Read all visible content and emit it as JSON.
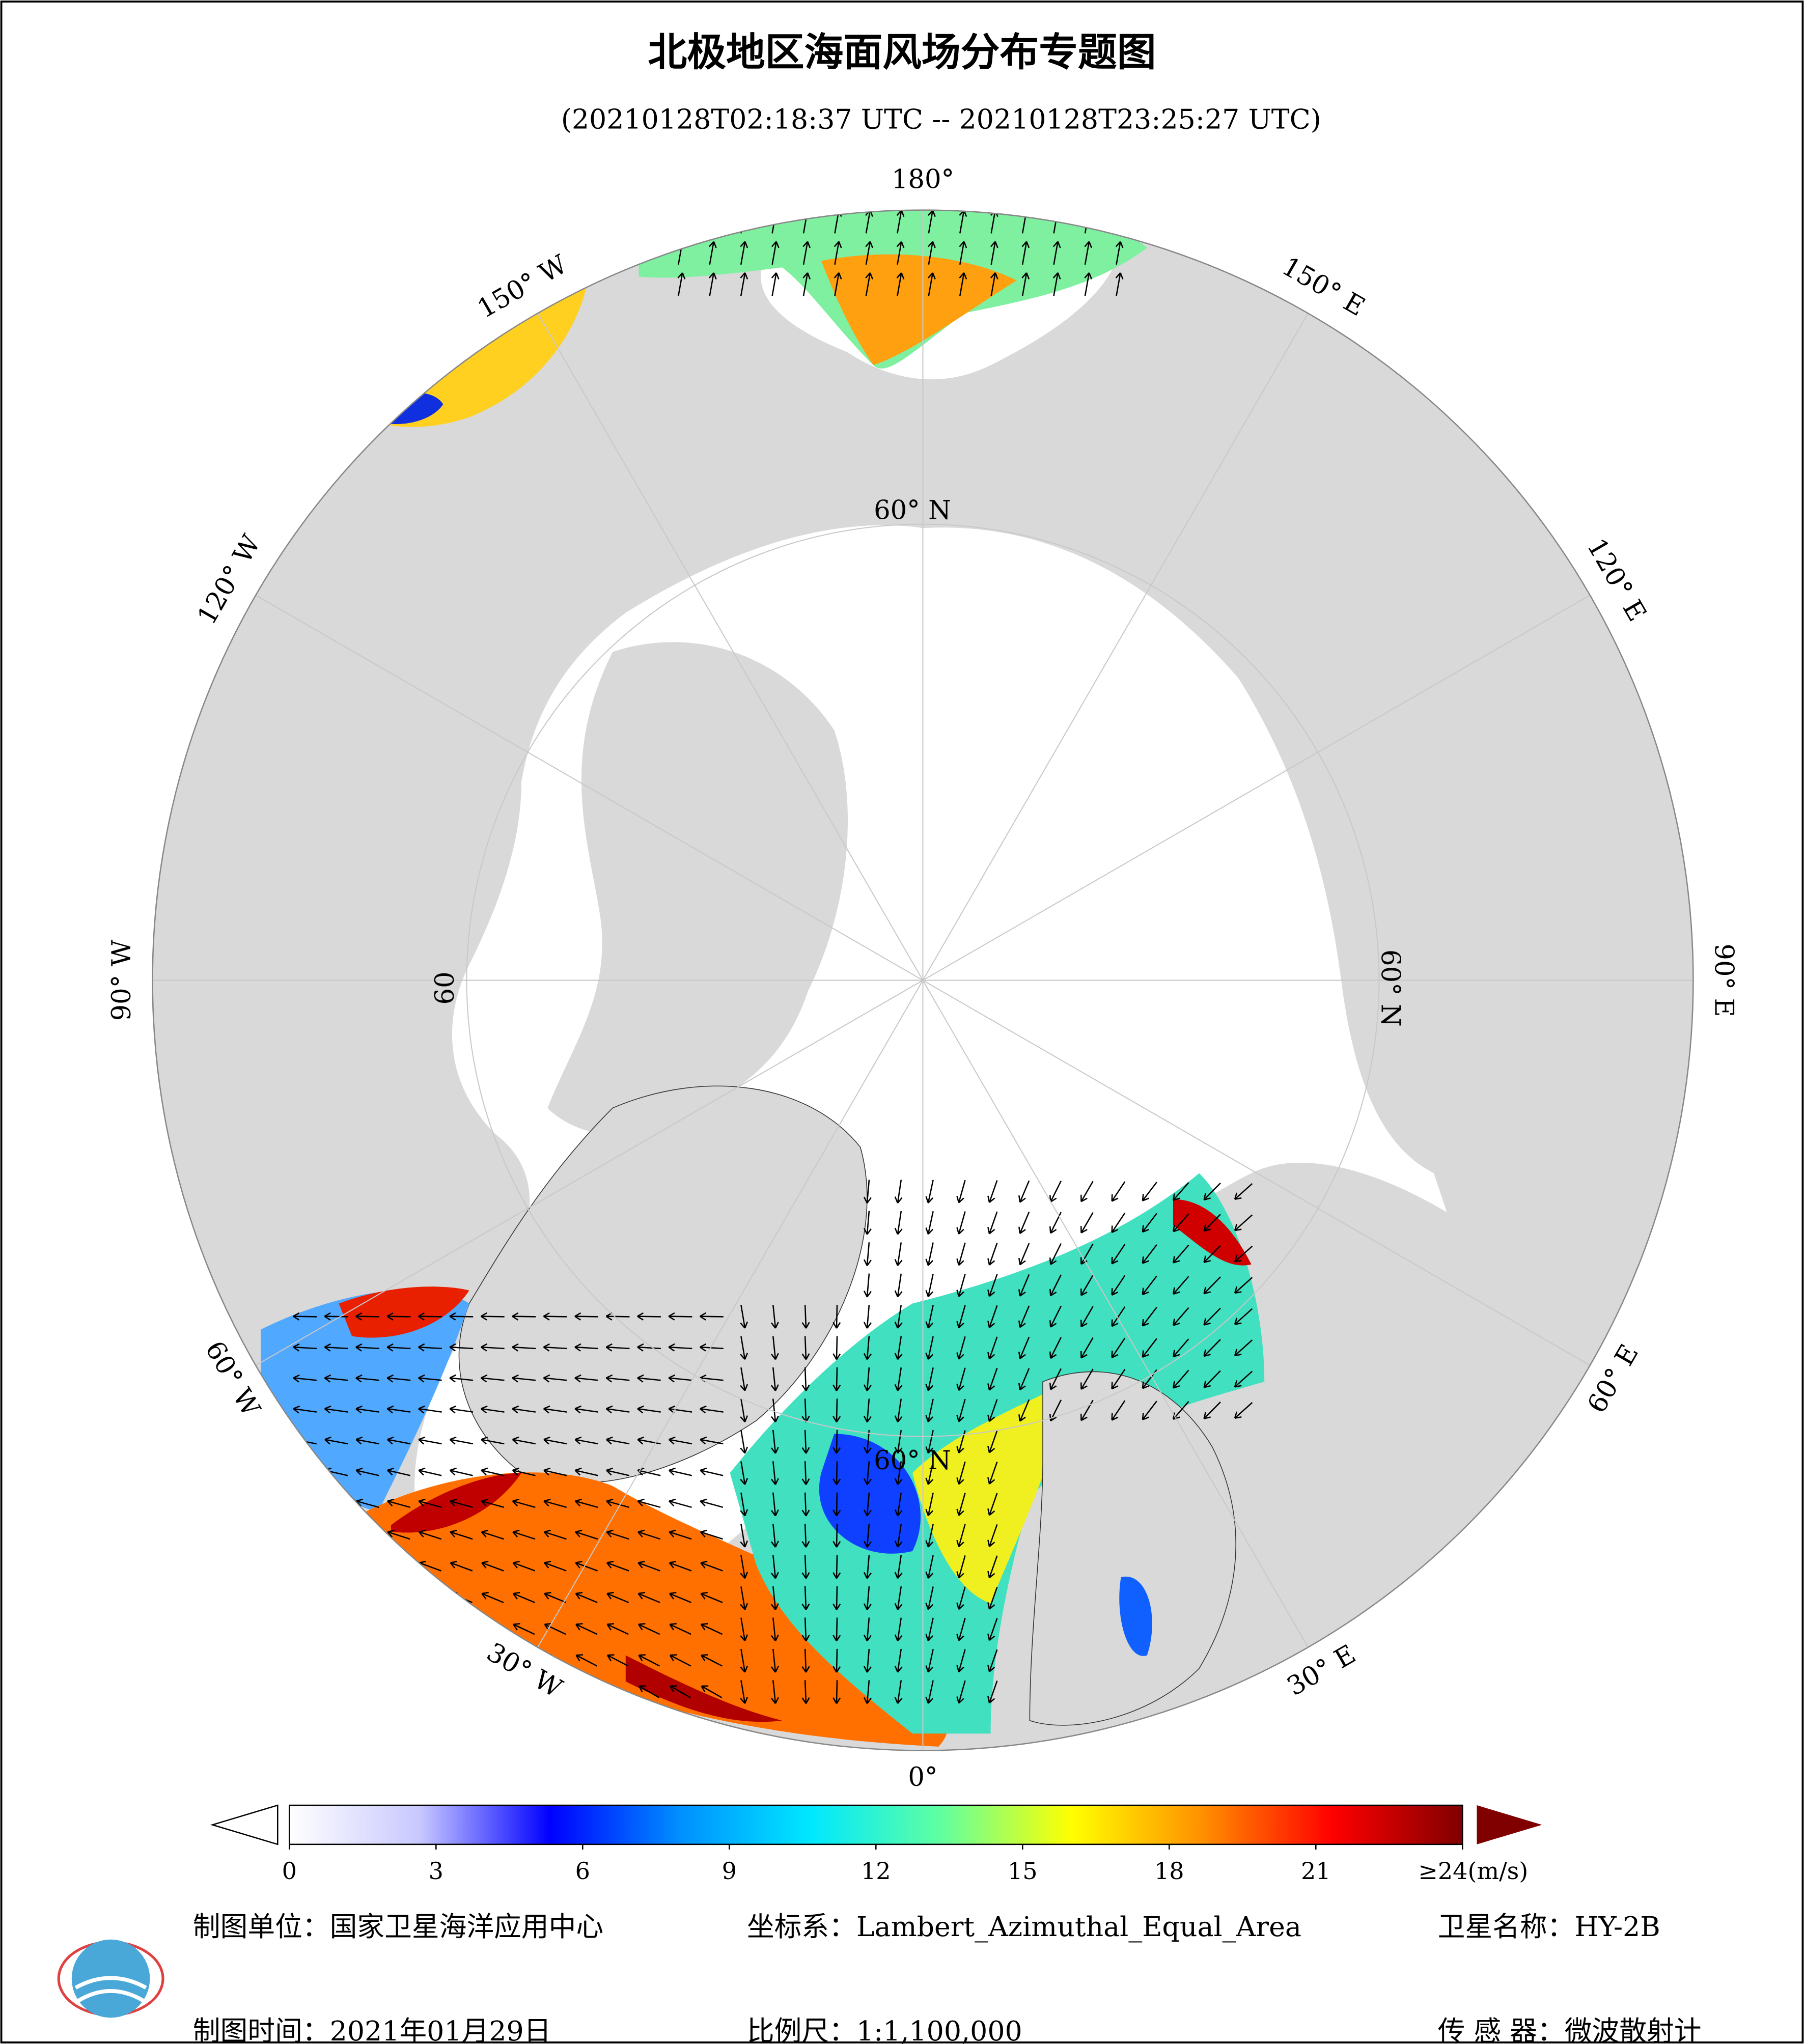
{
  "title": "北极地区海面风场分布专题图",
  "subtitle": "(20210128T02:18:37 UTC -- 20210128T23:25:27 UTC)",
  "longitude_labels": [
    "180°",
    "150° E",
    "120° E",
    "90° E",
    "60° E",
    "30° E",
    "0°",
    "30° W",
    "60° W",
    "90° W",
    "120° W",
    "150° W"
  ],
  "latitude_labels": [
    "60° N",
    "60° N",
    "60° N",
    "60"
  ],
  "colorbar": {
    "range": [
      0,
      24
    ],
    "ticks": [
      0,
      3,
      6,
      9,
      12,
      15,
      18,
      21,
      {
        "value": 24,
        "label": "≥24(m/s)"
      }
    ],
    "colors": [
      "#ffffff",
      "#c8c8ff",
      "#0000ff",
      "#0090ff",
      "#00e8ff",
      "#60ffa0",
      "#ffff00",
      "#ff9000",
      "#ff0000",
      "#800000"
    ]
  },
  "footer": {
    "unit": "制图单位：国家卫星海洋应用中心",
    "crs": "坐标系：Lambert_Azimuthal_Equal_Area",
    "satellite": "卫星名称：HY-2B",
    "date": "制图时间：2021年01月29日",
    "scale": "比例尺：1:1,100,000",
    "sensor": "传 感 器：微波散射计"
  }
}
